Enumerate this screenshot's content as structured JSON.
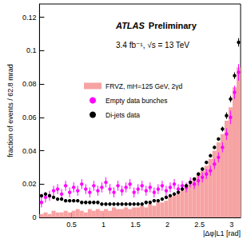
{
  "chart_data": {
    "type": "histogram",
    "annotations": [
      "ATLAS",
      "Preliminary",
      "3.4 fb⁻¹, √s = 13 TeV"
    ],
    "x_label": "|Δφ|L1 [rad]",
    "y_label": "fraction of events / 62.8 mrad",
    "xlim": [
      0,
      3.1416
    ],
    "ylim": [
      0,
      0.128
    ],
    "xticks": [
      0.5,
      1,
      1.5,
      2,
      2.5,
      3
    ],
    "yticks": [
      0,
      0.02,
      0.04,
      0.06,
      0.08,
      0.1,
      0.12
    ],
    "grid": false,
    "legend": "upper left",
    "bins": [
      0,
      0.0628,
      0.1257,
      0.1885,
      0.2513,
      0.3142,
      0.377,
      0.4398,
      0.5027,
      0.5655,
      0.6283,
      0.6912,
      0.754,
      0.8168,
      0.8796,
      0.9425,
      1.0053,
      1.0681,
      1.131,
      1.1938,
      1.2566,
      1.3195,
      1.3823,
      1.4451,
      1.508,
      1.5708,
      1.6336,
      1.6965,
      1.7593,
      1.8221,
      1.885,
      1.9478,
      2.0106,
      2.0735,
      2.1363,
      2.1991,
      2.2619,
      2.3248,
      2.3876,
      2.4504,
      2.5133,
      2.5761,
      2.6389,
      2.7018,
      2.7646,
      2.8274,
      2.8903,
      2.9531,
      3.0159,
      3.0788,
      3.1416
    ],
    "series": [
      {
        "name": "FRVZ, mH=125 GeV, 2γd",
        "type": "bar",
        "color": "#f7a3a3",
        "values": [
          0.002,
          0.003,
          0.002,
          0.004,
          0.003,
          0.003,
          0.004,
          0.003,
          0.004,
          0.005,
          0.004,
          0.003,
          0.005,
          0.004,
          0.005,
          0.004,
          0.005,
          0.004,
          0.006,
          0.005,
          0.005,
          0.006,
          0.005,
          0.006,
          0.006,
          0.007,
          0.006,
          0.008,
          0.007,
          0.009,
          0.009,
          0.01,
          0.012,
          0.013,
          0.014,
          0.016,
          0.018,
          0.02,
          0.023,
          0.026,
          0.028,
          0.031,
          0.035,
          0.04,
          0.045,
          0.05,
          0.058,
          0.066,
          0.078,
          0.09
        ]
      },
      {
        "name": "Empty data bunches",
        "type": "scatter",
        "marker": "circle",
        "color": "#ff00ff",
        "values": [
          0.009,
          0.012,
          0.013,
          0.016,
          0.017,
          0.014,
          0.019,
          0.015,
          0.018,
          0.016,
          0.02,
          0.017,
          0.015,
          0.019,
          0.016,
          0.018,
          0.021,
          0.017,
          0.015,
          0.019,
          0.016,
          0.018,
          0.02,
          0.015,
          0.017,
          0.019,
          0.016,
          0.018,
          0.015,
          0.017,
          0.019,
          0.016,
          0.018,
          0.02,
          0.017,
          0.019,
          0.018,
          0.021,
          0.02,
          0.022,
          0.024,
          0.026,
          0.028,
          0.032,
          0.036,
          0.042,
          0.05,
          0.06,
          0.075,
          0.087
        ],
        "errors": [
          0.003,
          0.003,
          0.003,
          0.003,
          0.003,
          0.003,
          0.003,
          0.003,
          0.003,
          0.003,
          0.003,
          0.003,
          0.003,
          0.003,
          0.003,
          0.003,
          0.003,
          0.003,
          0.003,
          0.003,
          0.003,
          0.003,
          0.003,
          0.003,
          0.003,
          0.003,
          0.003,
          0.003,
          0.003,
          0.003,
          0.003,
          0.003,
          0.003,
          0.003,
          0.003,
          0.003,
          0.003,
          0.003,
          0.003,
          0.003,
          0.003,
          0.003,
          0.003,
          0.003,
          0.003,
          0.003,
          0.0035,
          0.004,
          0.004,
          0.005
        ]
      },
      {
        "name": "Di-jets data",
        "type": "scatter",
        "marker": "circle",
        "color": "#000000",
        "values": [
          0.013,
          0.014,
          0.013,
          0.012,
          0.011,
          0.011,
          0.01,
          0.01,
          0.01,
          0.01,
          0.009,
          0.009,
          0.009,
          0.009,
          0.009,
          0.008,
          0.008,
          0.008,
          0.008,
          0.008,
          0.008,
          0.008,
          0.008,
          0.008,
          0.008,
          0.008,
          0.009,
          0.009,
          0.01,
          0.01,
          0.011,
          0.012,
          0.013,
          0.014,
          0.015,
          0.017,
          0.019,
          0.021,
          0.023,
          0.026,
          0.029,
          0.033,
          0.037,
          0.042,
          0.047,
          0.053,
          0.061,
          0.071,
          0.085,
          0.105
        ],
        "errors": [
          0.001,
          0.001,
          0.001,
          0.001,
          0.001,
          0.001,
          0.001,
          0.001,
          0.001,
          0.001,
          0.001,
          0.001,
          0.001,
          0.001,
          0.001,
          0.001,
          0.001,
          0.001,
          0.001,
          0.001,
          0.001,
          0.001,
          0.001,
          0.001,
          0.001,
          0.001,
          0.001,
          0.001,
          0.001,
          0.001,
          0.001,
          0.001,
          0.001,
          0.001,
          0.001,
          0.001,
          0.001,
          0.001,
          0.001,
          0.001,
          0.001,
          0.001,
          0.001,
          0.001,
          0.001,
          0.0015,
          0.002,
          0.002,
          0.002,
          0.0025
        ]
      }
    ]
  }
}
